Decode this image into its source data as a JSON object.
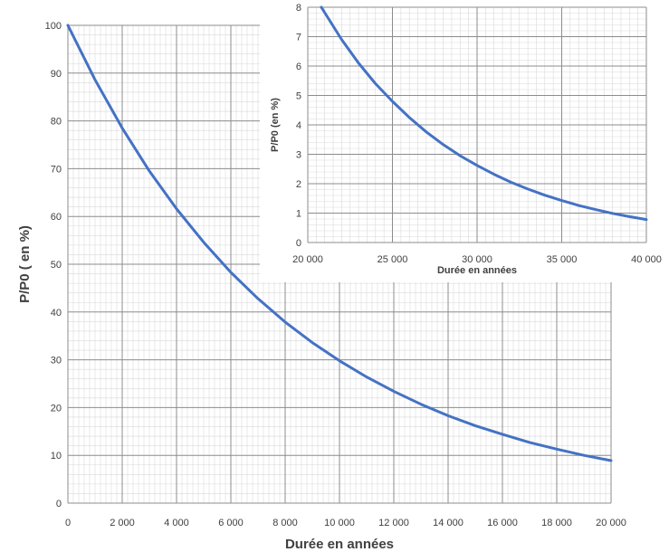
{
  "chart_data": [
    {
      "id": "main",
      "type": "line",
      "xlabel": "Durée en années",
      "ylabel": "P/P0 ( en %)",
      "xlim": [
        0,
        20000
      ],
      "ylim": [
        0,
        100
      ],
      "x_ticks": [
        0,
        2000,
        4000,
        6000,
        8000,
        10000,
        12000,
        14000,
        16000,
        18000,
        20000
      ],
      "y_ticks": [
        0,
        10,
        20,
        30,
        40,
        50,
        60,
        70,
        80,
        90,
        100
      ],
      "x_tick_labels": [
        "0",
        "2 000",
        "4 000",
        "6 000",
        "8 000",
        "10 000",
        "12 000",
        "14 000",
        "16 000",
        "18 000",
        "20 000"
      ],
      "y_tick_labels": [
        "0",
        "10",
        "20",
        "30",
        "40",
        "50",
        "60",
        "70",
        "80",
        "90",
        "100"
      ],
      "grid": true,
      "series": [
        {
          "color": "#4472c4",
          "x": [
            0,
            1000,
            2000,
            3000,
            4000,
            5000,
            6000,
            7000,
            8000,
            9000,
            10000,
            11000,
            12000,
            13000,
            14000,
            15000,
            16000,
            17000,
            18000,
            19000,
            20000
          ],
          "y": [
            100,
            88.6,
            78.5,
            69.5,
            61.6,
            54.6,
            48.3,
            42.8,
            37.9,
            33.6,
            29.8,
            26.4,
            23.4,
            20.7,
            18.3,
            16.2,
            14.4,
            12.7,
            11.3,
            10.0,
            8.9
          ]
        }
      ]
    },
    {
      "id": "inset",
      "type": "line",
      "xlabel": "Durée en années",
      "ylabel": "P/P0 (en %)",
      "xlim": [
        20000,
        40000
      ],
      "ylim": [
        0,
        8
      ],
      "x_ticks": [
        20000,
        25000,
        30000,
        35000,
        40000
      ],
      "y_ticks": [
        0,
        1,
        2,
        3,
        4,
        5,
        6,
        7,
        8
      ],
      "x_tick_labels": [
        "20 000",
        "25 000",
        "30 000",
        "35 000",
        "40 000"
      ],
      "y_tick_labels": [
        "0",
        "1",
        "2",
        "3",
        "4",
        "5",
        "6",
        "7",
        "8"
      ],
      "grid": true,
      "series": [
        {
          "color": "#4472c4",
          "x": [
            20800,
            22000,
            23000,
            24000,
            25000,
            26000,
            27000,
            28000,
            29000,
            30000,
            31000,
            32000,
            33000,
            34000,
            35000,
            36000,
            37000,
            38000,
            39000,
            40000
          ],
          "y": [
            8.0,
            6.9,
            6.1,
            5.4,
            4.8,
            4.25,
            3.76,
            3.33,
            2.95,
            2.62,
            2.32,
            2.05,
            1.82,
            1.61,
            1.43,
            1.26,
            1.12,
            0.99,
            0.88,
            0.78
          ]
        }
      ]
    }
  ]
}
